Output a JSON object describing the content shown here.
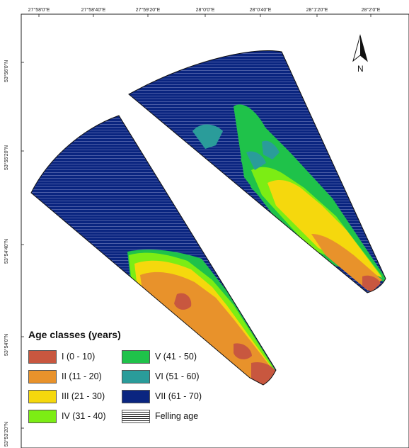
{
  "map": {
    "top_ticks": [
      "27°58'0\"E",
      "27°58'40\"E",
      "27°59'20\"E",
      "28°0'0\"E",
      "28°0'40\"E",
      "28°1'20\"E",
      "28°2'0\"E"
    ],
    "left_ticks": [
      "53°56'0\"N",
      "53°55'20\"N",
      "53°54'40\"N",
      "53°54'0\"N",
      "53°53'20\"N"
    ],
    "north_label": "N"
  },
  "legend": {
    "title": "Age classes (years)",
    "items": [
      {
        "label": "I (0 - 10)",
        "color": "#c8573f"
      },
      {
        "label": "II (11 - 20)",
        "color": "#e8922b"
      },
      {
        "label": "III (21 - 30)",
        "color": "#f5d80d"
      },
      {
        "label": "IV (31 - 40)",
        "color": "#7ced14"
      },
      {
        "label": "V (41 - 50)",
        "color": "#1fc24a"
      },
      {
        "label": "VI (51 - 60)",
        "color": "#2a9c9a"
      },
      {
        "label": "VII (61 - 70)",
        "color": "#0a2580"
      },
      {
        "label": "Felling age",
        "pattern": "horizontal-lines"
      }
    ]
  },
  "colors": {
    "stripe": "#3a4a8a",
    "border": "#111111"
  }
}
